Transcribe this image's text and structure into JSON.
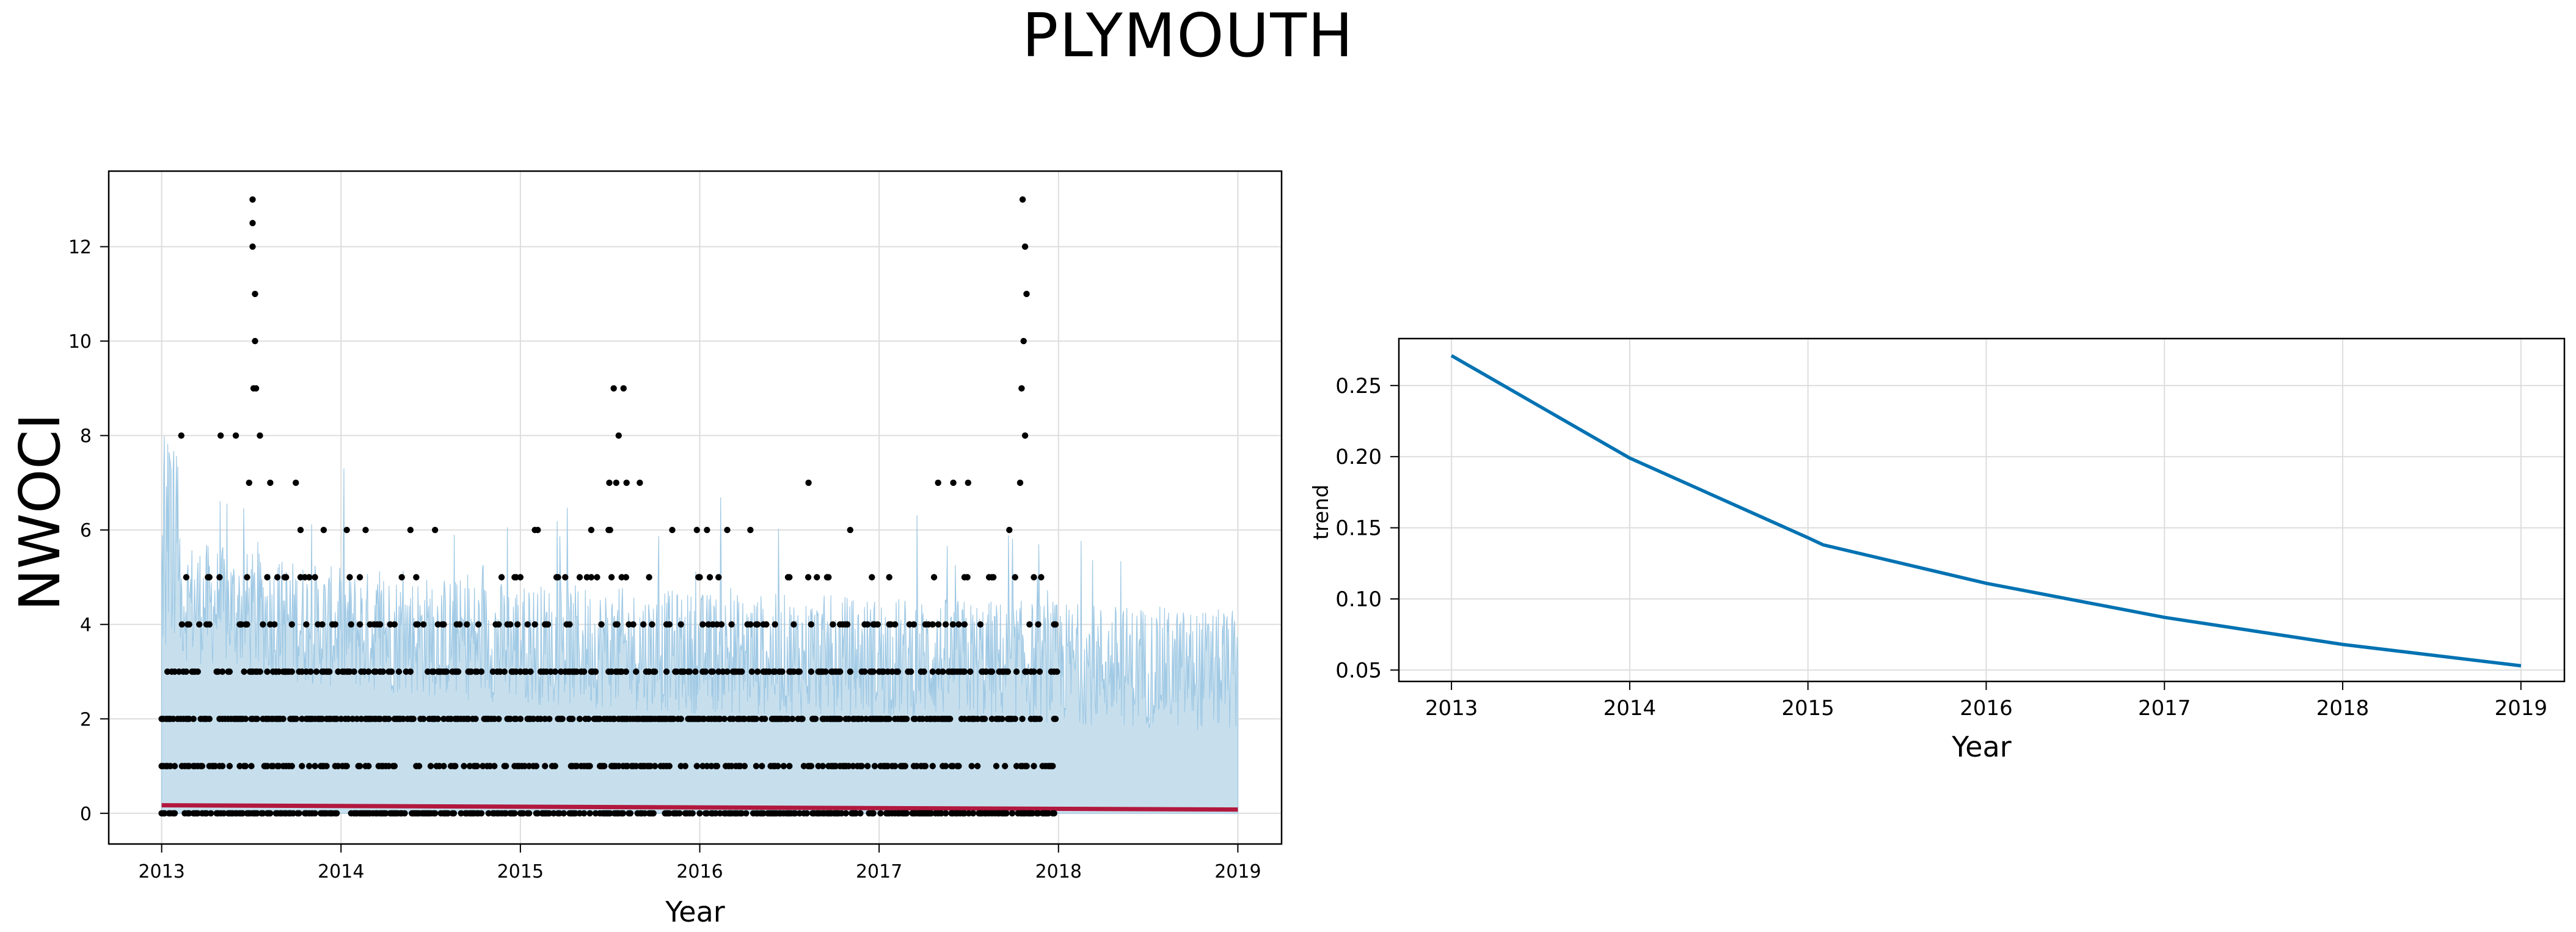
{
  "figure": {
    "title": "PLYMOUTH"
  },
  "chart_data": [
    {
      "type": "scatter",
      "title": "",
      "xlabel": "Year",
      "ylabel": "NWOCI",
      "x_ticks": [
        "2013",
        "2014",
        "2015",
        "2016",
        "2017",
        "2018",
        "2019"
      ],
      "y_ticks": [
        "0",
        "2",
        "4",
        "6",
        "8",
        "10",
        "12"
      ],
      "xlim": [
        "2012-09-15",
        "2019-03-31"
      ],
      "ylim": [
        -0.65,
        13.6
      ],
      "grid": true,
      "series": [
        {
          "kind": "forecast_uncertainty_band",
          "x_range": [
            "2013-01-01",
            "2019-01-01"
          ],
          "lower": 0,
          "upper_typical": [
            4.5,
            3.8,
            3.5,
            3.3,
            3.2,
            3.1,
            2.9
          ],
          "upper_peak": 8.3
        },
        {
          "kind": "forecast_line",
          "x": [
            "2013-01-01",
            "2019-01-01"
          ],
          "y": [
            0.17,
            0.08
          ]
        },
        {
          "kind": "observed_points",
          "x_range": [
            "2013-01-01",
            "2018-01-01"
          ],
          "common_values": [
            0,
            1,
            2,
            3,
            4,
            5,
            6
          ],
          "high_values": [
            [
              "2013-02-10",
              8
            ],
            [
              "2013-05-01",
              8
            ],
            [
              "2013-06-01",
              8
            ],
            [
              "2013-07-05",
              13
            ],
            [
              "2013-07-05",
              12.5
            ],
            [
              "2013-07-05",
              12
            ],
            [
              "2013-07-10",
              11
            ],
            [
              "2013-07-10",
              10
            ],
            [
              "2013-07-07",
              9
            ],
            [
              "2013-07-12",
              9
            ],
            [
              "2013-06-28",
              7
            ],
            [
              "2013-07-20",
              8
            ],
            [
              "2013-08-10",
              7
            ],
            [
              "2013-10-01",
              7
            ],
            [
              "2015-07-10",
              9
            ],
            [
              "2015-07-20",
              8
            ],
            [
              "2015-07-30",
              9
            ],
            [
              "2015-07-01",
              7
            ],
            [
              "2015-07-15",
              7
            ],
            [
              "2015-08-05",
              7
            ],
            [
              "2015-09-01",
              7
            ],
            [
              "2016-08-10",
              7
            ],
            [
              "2017-05-01",
              7
            ],
            [
              "2017-06-01",
              7
            ],
            [
              "2017-07-01",
              7
            ],
            [
              "2017-10-20",
              13
            ],
            [
              "2017-10-25",
              12
            ],
            [
              "2017-10-28",
              11
            ],
            [
              "2017-10-22",
              10
            ],
            [
              "2017-10-18",
              9
            ],
            [
              "2017-10-25",
              8
            ],
            [
              "2017-10-15",
              7
            ]
          ]
        }
      ]
    },
    {
      "type": "line",
      "title": "",
      "xlabel": "Year",
      "ylabel": "trend",
      "x_ticks": [
        "2013",
        "2014",
        "2015",
        "2016",
        "2017",
        "2018",
        "2019"
      ],
      "y_ticks": [
        "0.05",
        "0.10",
        "0.15",
        "0.20",
        "0.25"
      ],
      "xlim": [
        "2012-09-15",
        "2019-03-31"
      ],
      "ylim": [
        0.042,
        0.283
      ],
      "grid": true,
      "series": [
        {
          "x": [
            "2013-01-01",
            "2014-01-01",
            "2015-01-01",
            "2015-02-01",
            "2016-01-01",
            "2017-01-01",
            "2018-01-01",
            "2019-01-01"
          ],
          "y": [
            0.271,
            0.199,
            0.143,
            0.138,
            0.111,
            0.087,
            0.068,
            0.053
          ]
        }
      ]
    }
  ],
  "colors": {
    "band": "#c7dfed",
    "band_edge": "#9ec8e4",
    "forecast": "#b2183e",
    "points": "#000000",
    "trend": "#0072b2",
    "grid": "#dddddd"
  }
}
